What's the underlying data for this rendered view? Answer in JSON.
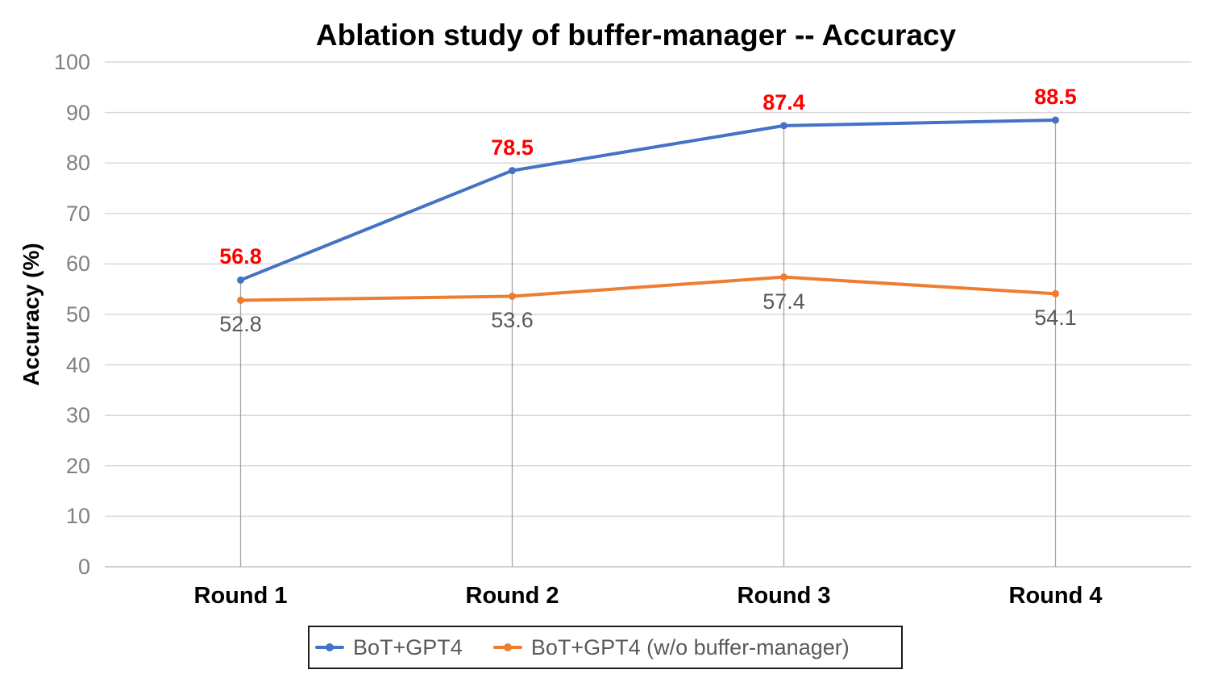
{
  "chart_data": {
    "type": "line",
    "title": "Ablation study of buffer-manager -- Accuracy",
    "xlabel": "",
    "ylabel": "Accuracy (%)",
    "categories": [
      "Round 1",
      "Round 2",
      "Round 3",
      "Round 4"
    ],
    "series": [
      {
        "name": "BoT+GPT4",
        "values": [
          56.8,
          78.5,
          87.4,
          88.5
        ],
        "color": "#4472C4",
        "label_color": "#FF0000",
        "label_weight": "bold",
        "label_position": "above"
      },
      {
        "name": "BoT+GPT4 (w/o buffer-manager)",
        "values": [
          52.8,
          53.6,
          57.4,
          54.1
        ],
        "color": "#ED7D31",
        "label_color": "#595959",
        "label_weight": "normal",
        "label_position": "below"
      }
    ],
    "ylim": [
      0,
      100
    ],
    "yticks": [
      0,
      10,
      20,
      30,
      40,
      50,
      60,
      70,
      80,
      90,
      100
    ],
    "grid": "horizontal",
    "drop_lines": true,
    "legend_position": "bottom",
    "colors": {
      "gridline": "#D9D9D9",
      "axis_line": "#BFBFBF",
      "drop_line": "#A6A6A6",
      "tick_label": "#808080",
      "legend_text": "#595959"
    }
  }
}
